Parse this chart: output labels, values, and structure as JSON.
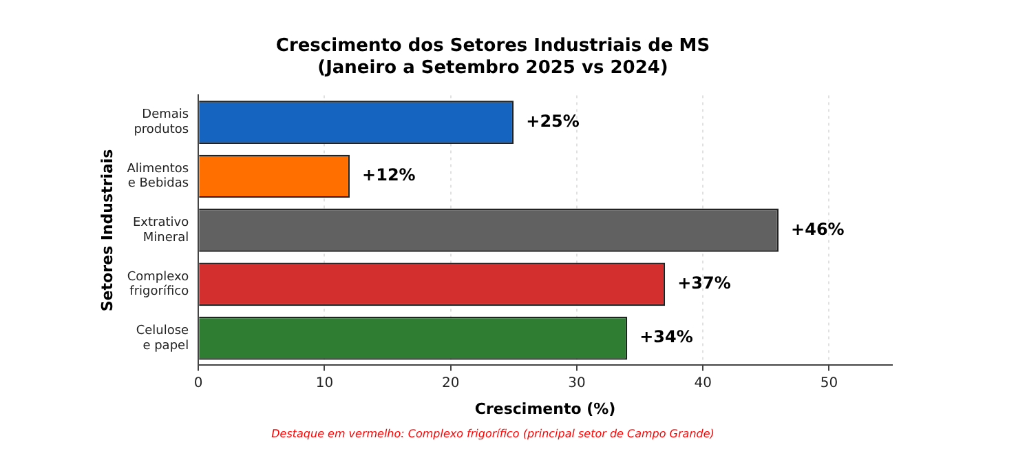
{
  "chart_data": {
    "type": "bar",
    "orientation": "horizontal",
    "title": "Crescimento dos Setores Industriais de MS\n(Janeiro a Setembro 2025 vs 2024)",
    "xlabel": "Crescimento (%)",
    "ylabel": "Setores Industriais",
    "categories": [
      "Demais\nprodutos",
      "Alimentos\ne Bebidas",
      "Extrativo\nMineral",
      "Complexo\nfrigorífico",
      "Celulose\ne papel"
    ],
    "values": [
      25,
      12,
      46,
      37,
      34
    ],
    "colors": [
      "#1565c0",
      "#ff6f00",
      "#616161",
      "#d32f2f",
      "#2e7d32"
    ],
    "value_labels": [
      "+25%",
      "+12%",
      "+46%",
      "+37%",
      "+34%"
    ],
    "xlim": [
      0,
      55
    ],
    "xticks": [
      0,
      10,
      20,
      30,
      40,
      50
    ],
    "grid": "x",
    "legend": false,
    "annotations": [
      "Destaque em vermelho: Complexo frigorífico (principal setor de Campo Grande)"
    ]
  }
}
